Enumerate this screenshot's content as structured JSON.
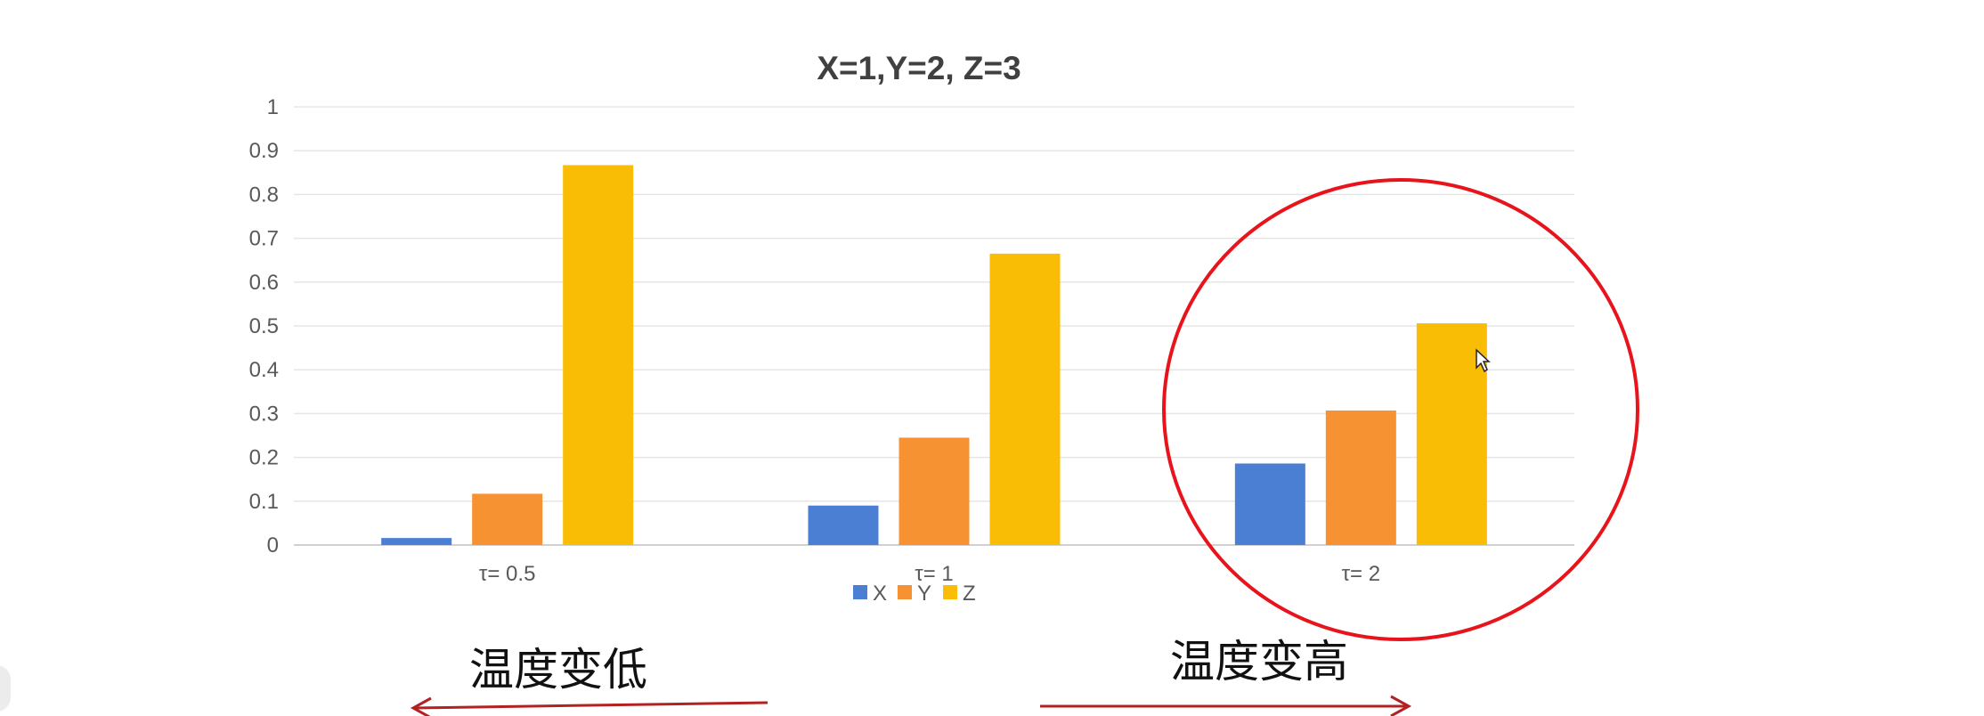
{
  "chart_data": {
    "type": "bar",
    "title": "X=1,Y=2, Z=3",
    "categories": [
      "τ= 0.5",
      "τ= 1",
      "τ= 2"
    ],
    "series": [
      {
        "name": "X",
        "values": [
          0.016,
          0.09,
          0.186
        ]
      },
      {
        "name": "Y",
        "values": [
          0.117,
          0.245,
          0.307
        ]
      },
      {
        "name": "Z",
        "values": [
          0.867,
          0.665,
          0.506
        ]
      }
    ],
    "ylim": [
      0,
      1
    ],
    "yticks": [
      "0",
      "0.1",
      "0.2",
      "0.3",
      "0.4",
      "0.5",
      "0.6",
      "0.7",
      "0.8",
      "0.9",
      "1"
    ],
    "grid": true,
    "legend_position": "bottom",
    "colors": [
      "#4a7fd4",
      "#f79232",
      "#fabd05"
    ]
  },
  "annotations": {
    "left_label": "温度变低",
    "right_label": "温度变高",
    "arrow_color": "#b22222",
    "circle_color": "#e8141c"
  }
}
